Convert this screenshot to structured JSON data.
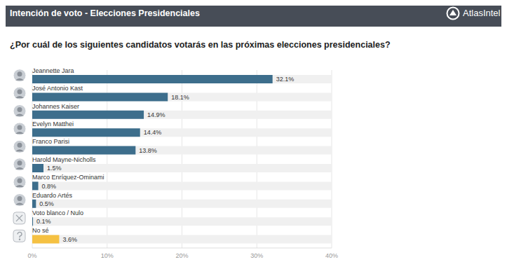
{
  "chart_data": {
    "type": "bar",
    "title": "Intención de voto - Elecciones Presidenciales",
    "subtitle": "¿Por cuál de los siguientes candidatos votarás en las próximas elecciones presidenciales?",
    "source": "AtlasIntel",
    "orientation": "horizontal",
    "categories": [
      "Jeannette Jara",
      "José Antonio Kast",
      "Johannes Kaiser",
      "Evelyn Matthei",
      "Franco Parisi",
      "Harold Mayne-Nicholls",
      "Marco Enríquez-Ominami",
      "Eduardo Artés",
      "Voto blanco / Nulo",
      "No sé"
    ],
    "values": [
      32.1,
      18.1,
      14.9,
      14.4,
      13.8,
      1.5,
      0.8,
      0.5,
      0.1,
      3.6
    ],
    "value_labels": [
      "32.1%",
      "18.1%",
      "14.9%",
      "14.4%",
      "13.8%",
      "1.5%",
      "0.8%",
      "0.5%",
      "0.1%",
      "3.6%"
    ],
    "colors": [
      "#3d6e8c",
      "#3d6e8c",
      "#3d6e8c",
      "#3d6e8c",
      "#3d6e8c",
      "#3d6e8c",
      "#3d6e8c",
      "#3d6e8c",
      "#3d6e8c",
      "#f5c142"
    ],
    "xlim": [
      0,
      40
    ],
    "xticks": [
      {
        "value": 0,
        "label": "0%"
      },
      {
        "value": 10,
        "label": "10%"
      },
      {
        "value": 20,
        "label": "20%"
      },
      {
        "value": 30,
        "label": "30%"
      },
      {
        "value": 40,
        "label": "40%"
      }
    ],
    "grid": true,
    "data_labels": true
  }
}
